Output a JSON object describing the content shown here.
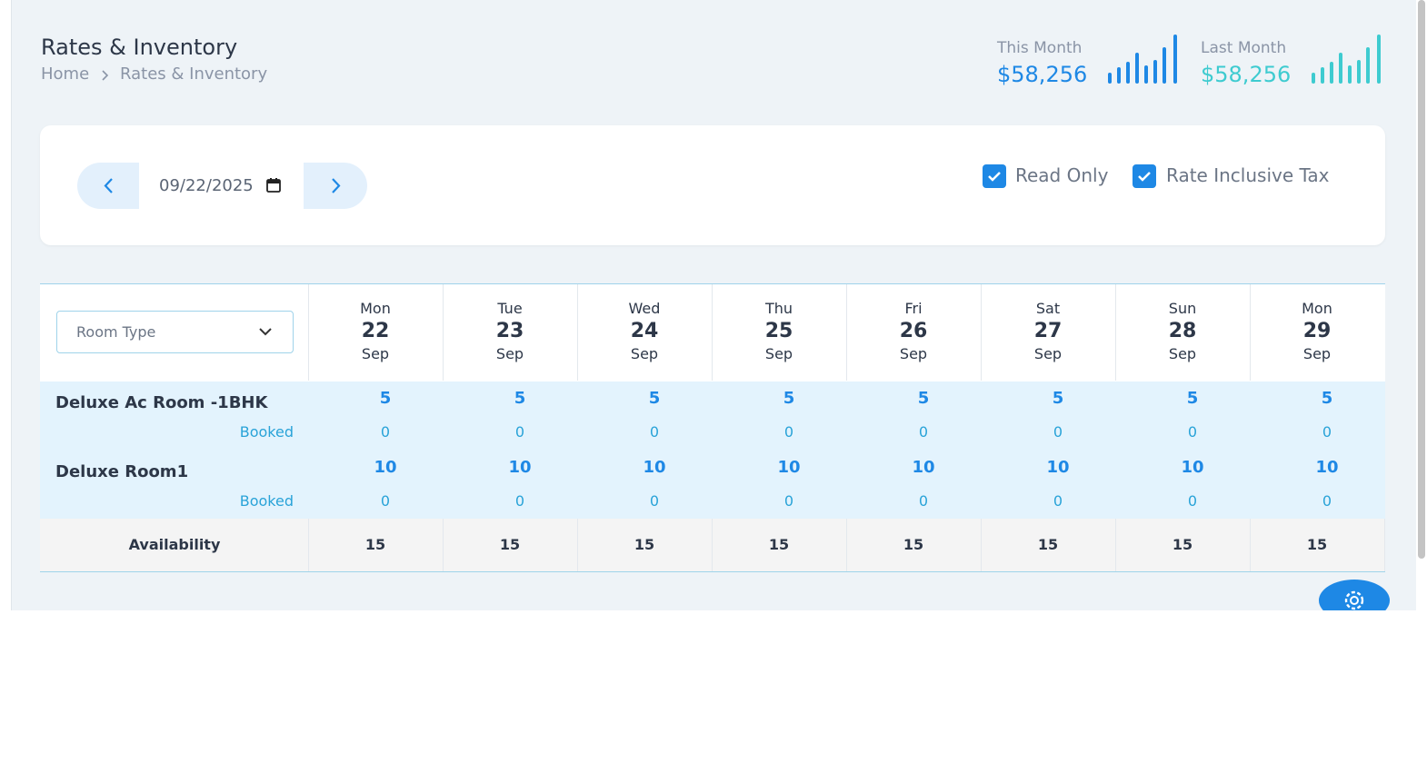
{
  "header": {
    "title": "Rates & Inventory",
    "breadcrumb": [
      "Home",
      "Rates & Inventory"
    ]
  },
  "stats": [
    {
      "label": "This Month",
      "value": "$58,256"
    },
    {
      "label": "Last Month",
      "value": "$58,256"
    }
  ],
  "toolbar": {
    "date": "09/22/2025",
    "checkboxes": [
      "Read Only",
      "Rate Inclusive Tax"
    ]
  },
  "table": {
    "room_type_placeholder": "Room Type",
    "days": [
      {
        "weekday": "Mon",
        "day": 22,
        "month": "Sep"
      },
      {
        "weekday": "Tue",
        "day": 23,
        "month": "Sep"
      },
      {
        "weekday": "Wed",
        "day": 24,
        "month": "Sep"
      },
      {
        "weekday": "Thu",
        "day": 25,
        "month": "Sep"
      },
      {
        "weekday": "Fri",
        "day": 26,
        "month": "Sep"
      },
      {
        "weekday": "Sat",
        "day": 27,
        "month": "Sep"
      },
      {
        "weekday": "Sun",
        "day": 28,
        "month": "Sep"
      },
      {
        "weekday": "Mon",
        "day": 29,
        "month": "Sep"
      }
    ],
    "rooms": [
      {
        "name": "Deluxe Ac Room -1BHK",
        "booked_label": "Booked",
        "available": [
          5,
          5,
          5,
          5,
          5,
          5,
          5,
          5
        ],
        "booked": [
          0,
          0,
          0,
          0,
          0,
          0,
          0,
          0
        ]
      },
      {
        "name": "Deluxe Room1",
        "booked_label": "Booked",
        "available": [
          10,
          10,
          10,
          10,
          10,
          10,
          10,
          10
        ],
        "booked": [
          0,
          0,
          0,
          0,
          0,
          0,
          0,
          0
        ]
      }
    ],
    "availability_label": "Availability",
    "availability": [
      15,
      15,
      15,
      15,
      15,
      15,
      15,
      15
    ]
  }
}
